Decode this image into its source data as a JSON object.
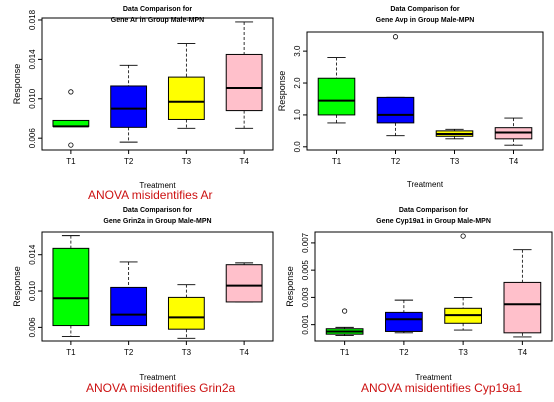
{
  "chart_data": [
    {
      "type": "box",
      "title": "Data Comparison for",
      "subtitle": "Gene Ar in Group Male-MPN",
      "xlabel": "Treatment",
      "ylabel": "Response",
      "categories": [
        "T1",
        "T2",
        "T3",
        "T4"
      ],
      "ylim": [
        0.0048,
        0.0182
      ],
      "yticks": [
        0.006,
        0.01,
        0.014,
        0.018
      ],
      "ytick_labels": [
        "0.006",
        "0.010",
        "0.014",
        "0.018"
      ],
      "colors": [
        "#00ff00",
        "#0000ff",
        "#ffff00",
        "#ffc0cb"
      ],
      "boxes": [
        {
          "whislo": 0.0072,
          "q1": 0.0072,
          "med": 0.0072,
          "q3": 0.0078,
          "whishi": 0.0078,
          "outliers": [
            0.0107,
            0.0053
          ]
        },
        {
          "whislo": 0.0056,
          "q1": 0.0071,
          "med": 0.009,
          "q3": 0.0113,
          "whishi": 0.0134,
          "outliers": []
        },
        {
          "whislo": 0.007,
          "q1": 0.0079,
          "med": 0.0097,
          "q3": 0.0122,
          "whishi": 0.0156,
          "outliers": []
        },
        {
          "whislo": 0.007,
          "q1": 0.0088,
          "med": 0.0111,
          "q3": 0.0145,
          "whishi": 0.0178,
          "outliers": []
        }
      ],
      "caption": "ANOVA misidentifies Ar"
    },
    {
      "type": "box",
      "title": "Data Comparison for",
      "subtitle": "Gene Avp in Group Male-MPN",
      "xlabel": "Treatment",
      "ylabel": "Response",
      "categories": [
        "T1",
        "T2",
        "T3",
        "T4"
      ],
      "ylim": [
        -0.1,
        3.6
      ],
      "yticks": [
        0.0,
        1.0,
        2.0,
        3.0
      ],
      "ytick_labels": [
        "0.0",
        "1.0",
        "2.0",
        "3.0"
      ],
      "colors": [
        "#00ff00",
        "#0000ff",
        "#ffff00",
        "#ffc0cb"
      ],
      "boxes": [
        {
          "whislo": 0.75,
          "q1": 1.0,
          "med": 1.45,
          "q3": 2.15,
          "whishi": 2.8,
          "outliers": []
        },
        {
          "whislo": 0.35,
          "q1": 0.75,
          "med": 1.0,
          "q3": 1.55,
          "whishi": 1.55,
          "outliers": [
            3.45
          ]
        },
        {
          "whislo": 0.25,
          "q1": 0.33,
          "med": 0.4,
          "q3": 0.5,
          "whishi": 0.55,
          "outliers": []
        },
        {
          "whislo": 0.05,
          "q1": 0.25,
          "med": 0.45,
          "q3": 0.6,
          "whishi": 0.9,
          "outliers": []
        }
      ],
      "caption": ""
    },
    {
      "type": "box",
      "title": "Data Comparison for",
      "subtitle": "Gene Grin2a in Group Male-MPN",
      "xlabel": "Treatment",
      "ylabel": "Response",
      "categories": [
        "T1",
        "T2",
        "T3",
        "T4"
      ],
      "ylim": [
        0.0045,
        0.0165
      ],
      "yticks": [
        0.006,
        0.01,
        0.014
      ],
      "ytick_labels": [
        "0.006",
        "0.010",
        "0.014"
      ],
      "colors": [
        "#00ff00",
        "#0000ff",
        "#ffff00",
        "#ffc0cb"
      ],
      "boxes": [
        {
          "whislo": 0.005,
          "q1": 0.0062,
          "med": 0.0092,
          "q3": 0.0147,
          "whishi": 0.0161,
          "outliers": []
        },
        {
          "whislo": 0.0062,
          "q1": 0.0062,
          "med": 0.0074,
          "q3": 0.0104,
          "whishi": 0.0132,
          "outliers": []
        },
        {
          "whislo": 0.0048,
          "q1": 0.0058,
          "med": 0.0071,
          "q3": 0.0093,
          "whishi": 0.0107,
          "outliers": []
        },
        {
          "whislo": 0.0088,
          "q1": 0.0088,
          "med": 0.0106,
          "q3": 0.0129,
          "whishi": 0.0131,
          "outliers": []
        }
      ],
      "caption": "ANOVA misidentifies Grin2a"
    },
    {
      "type": "box",
      "title": "Data Comparison for",
      "subtitle": "Gene Cyp19a1 in Group Male-MPN",
      "xlabel": "Treatment",
      "ylabel": "Response",
      "categories": [
        "T1",
        "T2",
        "T3",
        "T4"
      ],
      "ylim": [
        -0.0002,
        0.0078
      ],
      "yticks": [
        0.001,
        0.003,
        0.005,
        0.007
      ],
      "ytick_labels": [
        "0.001",
        "0.003",
        "0.005",
        "0.007"
      ],
      "colors": [
        "#00ff00",
        "#0000ff",
        "#ffff00",
        "#ffc0cb"
      ],
      "boxes": [
        {
          "whislo": 0.0002,
          "q1": 0.0003,
          "med": 0.0005,
          "q3": 0.0007,
          "whishi": 0.0008,
          "outliers": [
            0.002
          ]
        },
        {
          "whislo": 0.0004,
          "q1": 0.0005,
          "med": 0.0014,
          "q3": 0.0019,
          "whishi": 0.0028,
          "outliers": []
        },
        {
          "whislo": 0.0006,
          "q1": 0.0011,
          "med": 0.0017,
          "q3": 0.0022,
          "whishi": 0.003,
          "outliers": [
            0.0075
          ]
        },
        {
          "whislo": 0.0001,
          "q1": 0.0004,
          "med": 0.0025,
          "q3": 0.0041,
          "whishi": 0.0065,
          "outliers": []
        }
      ],
      "caption": "ANOVA misidentifies Cyp19a1"
    }
  ]
}
